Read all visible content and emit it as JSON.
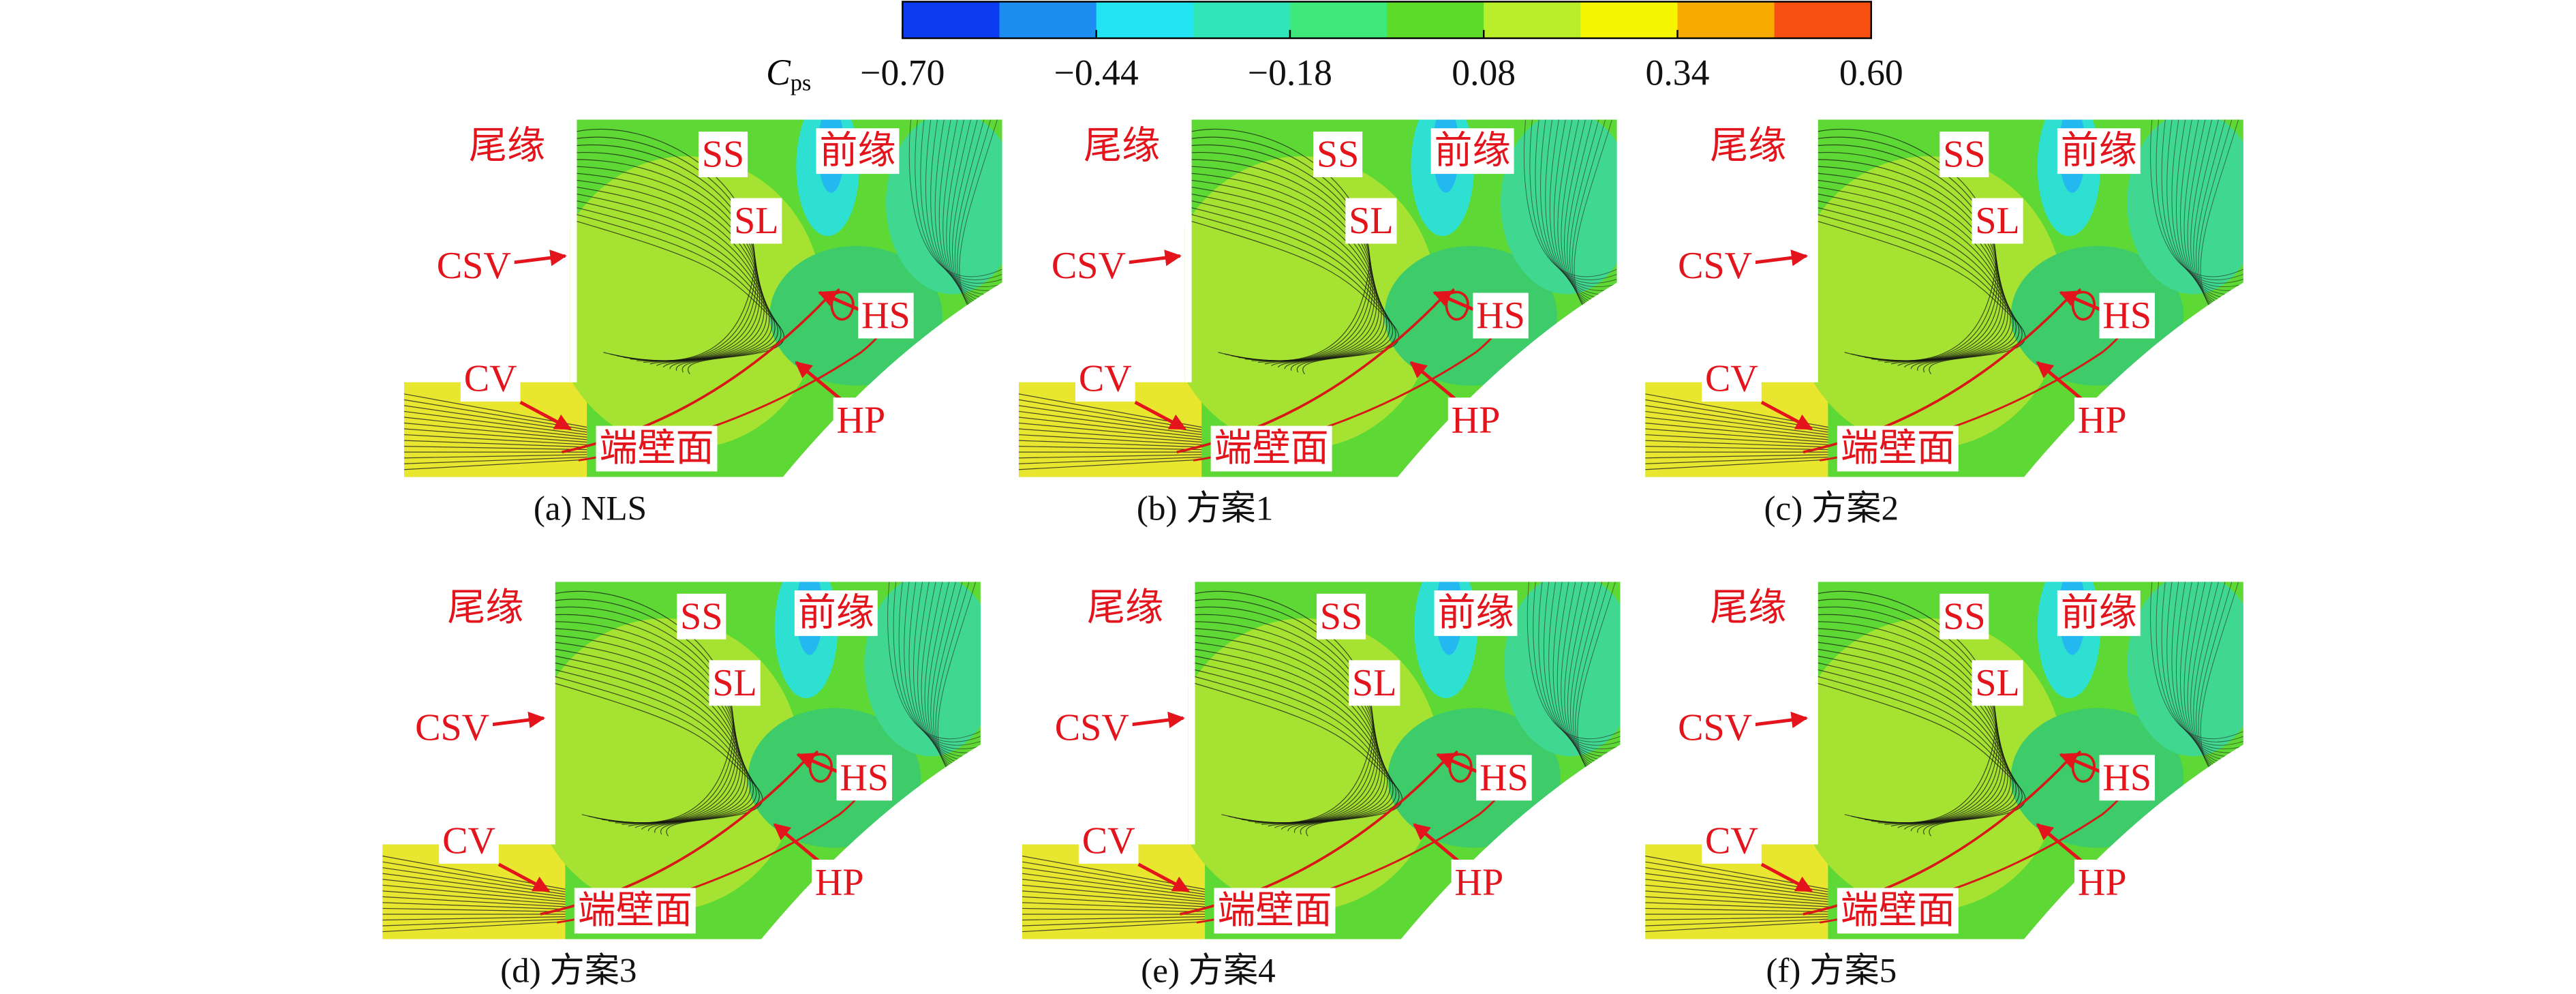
{
  "colorbar": {
    "symbol": "C",
    "subscript": "ps",
    "lim": [
      -0.7,
      0.6
    ],
    "colors": [
      "#0b3cf0",
      "#1c8ef2",
      "#22e4f2",
      "#30e6b8",
      "#3ee87a",
      "#5cdc28",
      "#b8ee2a",
      "#f6f600",
      "#f8aa00",
      "#f85010"
    ],
    "ticks": [
      {
        "value": -0.7,
        "label": "−0.70"
      },
      {
        "value": -0.44,
        "label": "−0.44"
      },
      {
        "value": -0.18,
        "label": "−0.18"
      },
      {
        "value": 0.08,
        "label": "0.08"
      },
      {
        "value": 0.34,
        "label": "0.34"
      },
      {
        "value": 0.6,
        "label": "0.60"
      }
    ]
  },
  "panels": [
    {
      "caption": "(a) NLS",
      "labels": {
        "te": "尾缘",
        "ss": "SS",
        "le": "前缘",
        "sl": "SL",
        "csv": "CSV",
        "hs": "HS",
        "cv": "CV",
        "hp": "HP",
        "wall": "端壁面"
      }
    },
    {
      "caption": "(b) 方案1",
      "labels": {
        "te": "尾缘",
        "ss": "SS",
        "le": "前缘",
        "sl": "SL",
        "csv": "CSV",
        "hs": "HS",
        "cv": "CV",
        "hp": "HP",
        "wall": "端壁面"
      }
    },
    {
      "caption": "(c) 方案2",
      "labels": {
        "te": "尾缘",
        "ss": "SS",
        "le": "前缘",
        "sl": "SL",
        "csv": "CSV",
        "hs": "HS",
        "cv": "CV",
        "hp": "HP",
        "wall": "端壁面"
      }
    },
    {
      "caption": "(d) 方案3",
      "labels": {
        "te": "尾缘",
        "ss": "SS",
        "le": "前缘",
        "sl": "SL",
        "csv": "CSV",
        "hs": "HS",
        "cv": "CV",
        "hp": "HP",
        "wall": "端壁面"
      }
    },
    {
      "caption": "(e) 方案4",
      "labels": {
        "te": "尾缘",
        "ss": "SS",
        "le": "前缘",
        "sl": "SL",
        "csv": "CSV",
        "hs": "HS",
        "cv": "CV",
        "hp": "HP",
        "wall": "端壁面"
      }
    },
    {
      "caption": "(f) 方案5",
      "labels": {
        "te": "尾缘",
        "ss": "SS",
        "le": "前缘",
        "sl": "SL",
        "csv": "CSV",
        "hs": "HS",
        "cv": "CV",
        "hp": "HP",
        "wall": "端壁面"
      }
    }
  ]
}
